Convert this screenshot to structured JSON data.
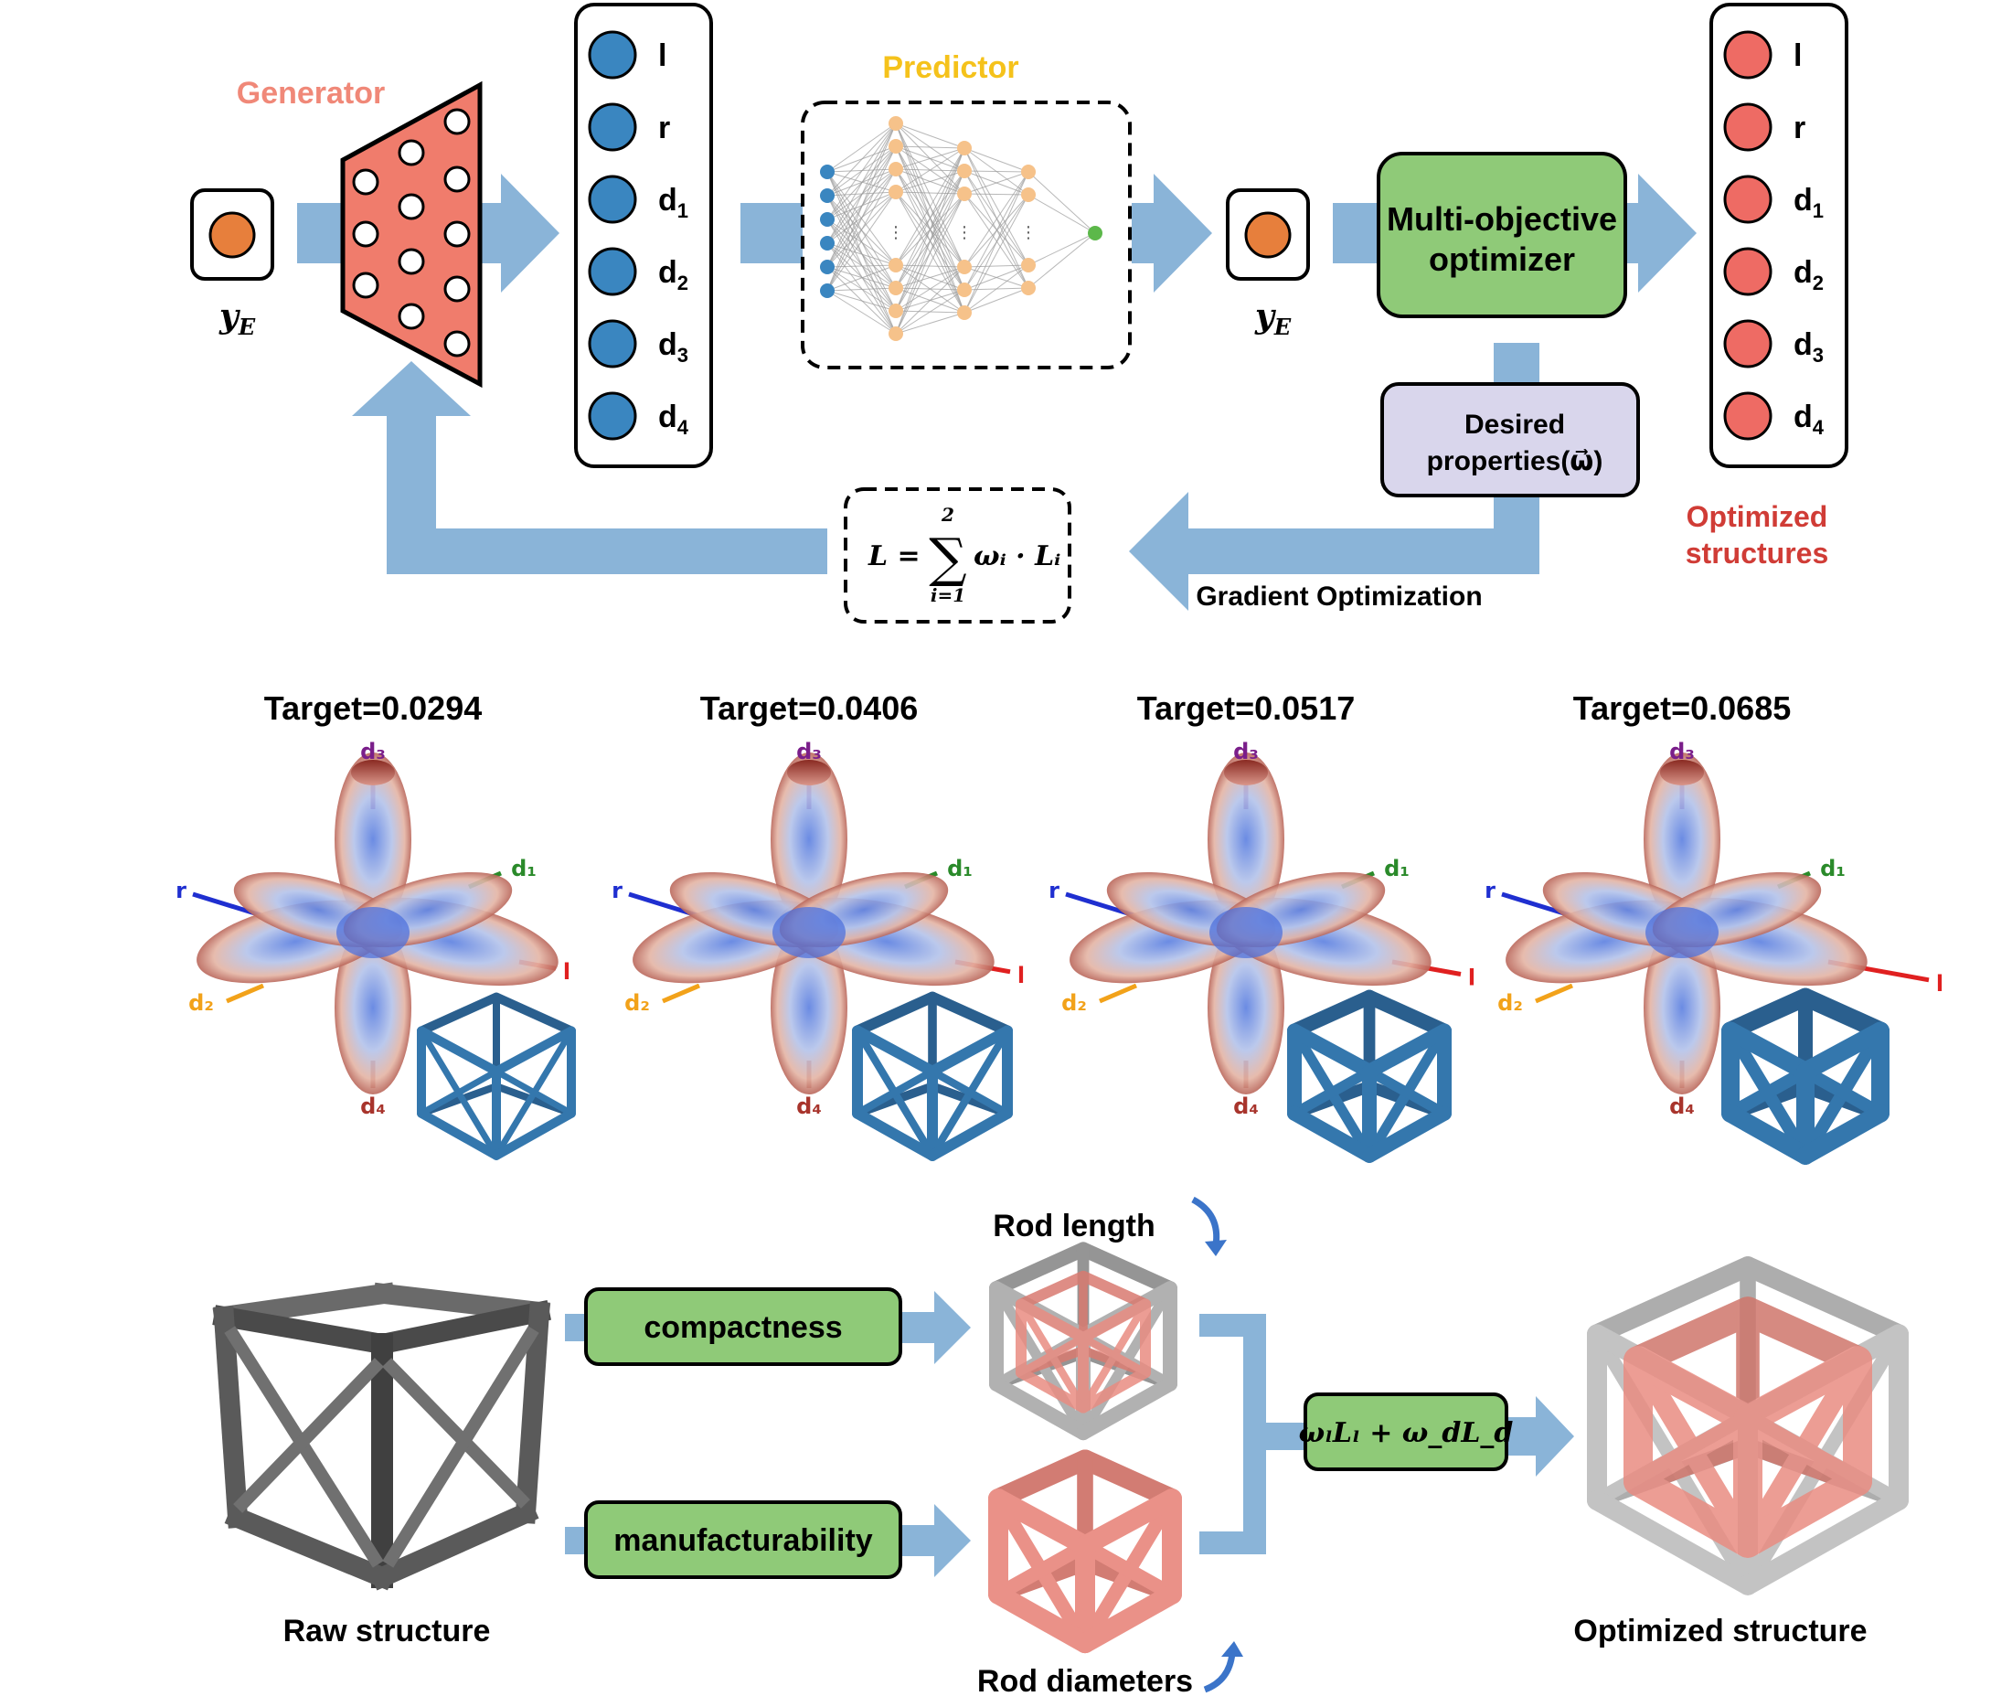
{
  "colors": {
    "arrow": "#8ab4d8",
    "generator_fill": "#f07c6c",
    "input_node": "#3a86c0",
    "output_node": "#ee6b64",
    "y_node": "#e77f3c",
    "optimizer_fill": "#8fca78",
    "desired_fill": "#d9d6ec",
    "predictor_label": "#f5c21b",
    "generator_label": "#f08878",
    "optimized_label": "#d03c36",
    "cube_blue": "#3477ad",
    "cube_gray": "#555555",
    "cube_red": "#e98c82"
  },
  "top": {
    "generator_label": "Generator",
    "predictor_label": "Predictor",
    "y_label_left": "y",
    "y_label_left_sub": "E",
    "y_label_right": "y",
    "y_label_right_sub": "E",
    "input_params": [
      {
        "main": "l",
        "sub": ""
      },
      {
        "main": "r",
        "sub": ""
      },
      {
        "main": "d",
        "sub": "1"
      },
      {
        "main": "d",
        "sub": "2"
      },
      {
        "main": "d",
        "sub": "3"
      },
      {
        "main": "d",
        "sub": "4"
      }
    ],
    "output_params": [
      {
        "main": "l",
        "sub": ""
      },
      {
        "main": "r",
        "sub": ""
      },
      {
        "main": "d",
        "sub": "1"
      },
      {
        "main": "d",
        "sub": "2"
      },
      {
        "main": "d",
        "sub": "3"
      },
      {
        "main": "d",
        "sub": "4"
      }
    ],
    "optimizer_line1": "Multi-objective",
    "optimizer_line2": "optimizer",
    "desired_line1": "Desired",
    "desired_line2": "properties(ω⃗)",
    "loss_lhs": "L =",
    "loss_sum_top": "2",
    "loss_sum_bottom": "i=1",
    "loss_rhs": "ωᵢ · Lᵢ",
    "gradient_label": "Gradient Optimization",
    "optimized_line1": "Optimized",
    "optimized_line2": "structures"
  },
  "middle": {
    "panels": [
      {
        "title": "Target=0.0294"
      },
      {
        "title": "Target=0.0406"
      },
      {
        "title": "Target=0.0517"
      },
      {
        "title": "Target=0.0685"
      }
    ],
    "axis_labels": {
      "d3": "d₃",
      "d1": "d₁",
      "r": "r",
      "l": "l",
      "d2": "d₂",
      "d4": "d₄"
    }
  },
  "bottom": {
    "raw_label": "Raw structure",
    "compactness_label": "compactness",
    "manufacturability_label": "manufacturability",
    "rod_length_label": "Rod length",
    "rod_diameters_label": "Rod diameters",
    "combined_loss": "ωₗLₗ + ω_dL_d",
    "optimized_label": "Optimized structure"
  }
}
